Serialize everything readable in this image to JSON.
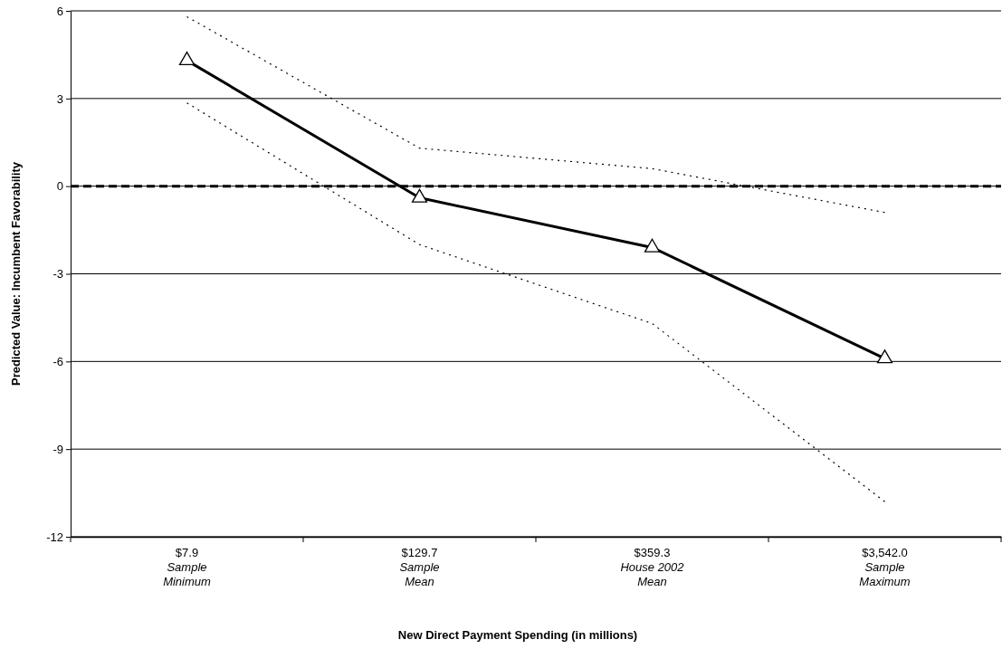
{
  "chart_data": {
    "type": "line",
    "xlabel": "New Direct Payment Spending (in millions)",
    "ylabel": "Predicted Value: Incumbent Favorability",
    "categories": [
      "$7.9\nSample\nMinimum",
      "$129.7\nSample\nMean",
      "$359.3\nHouse 2002\nMean",
      "$3,542.0\nSample\nMaximum"
    ],
    "series": [
      {
        "color": "#000000",
        "values": [
          5.8,
          1.3,
          0.6,
          -0.9
        ],
        "marker": "none",
        "line_style": "dotted"
      },
      {
        "color": "#000000",
        "values": [
          2.85,
          -2.0,
          -4.7,
          -10.8
        ],
        "marker": "none",
        "line_style": "dotted"
      },
      {
        "color": "#000000",
        "values": [
          4.3,
          -0.4,
          -2.1,
          -5.9
        ],
        "marker": "triangle",
        "line_style": "solid"
      }
    ],
    "ylim": [
      -12,
      6
    ],
    "yticks": [
      -12,
      -9,
      -6,
      -3,
      0,
      3,
      6
    ],
    "grid": "y",
    "ref_lines": [
      {
        "axis": "y",
        "value": 0,
        "color": "#000000",
        "line_style": "dashed"
      }
    ]
  }
}
